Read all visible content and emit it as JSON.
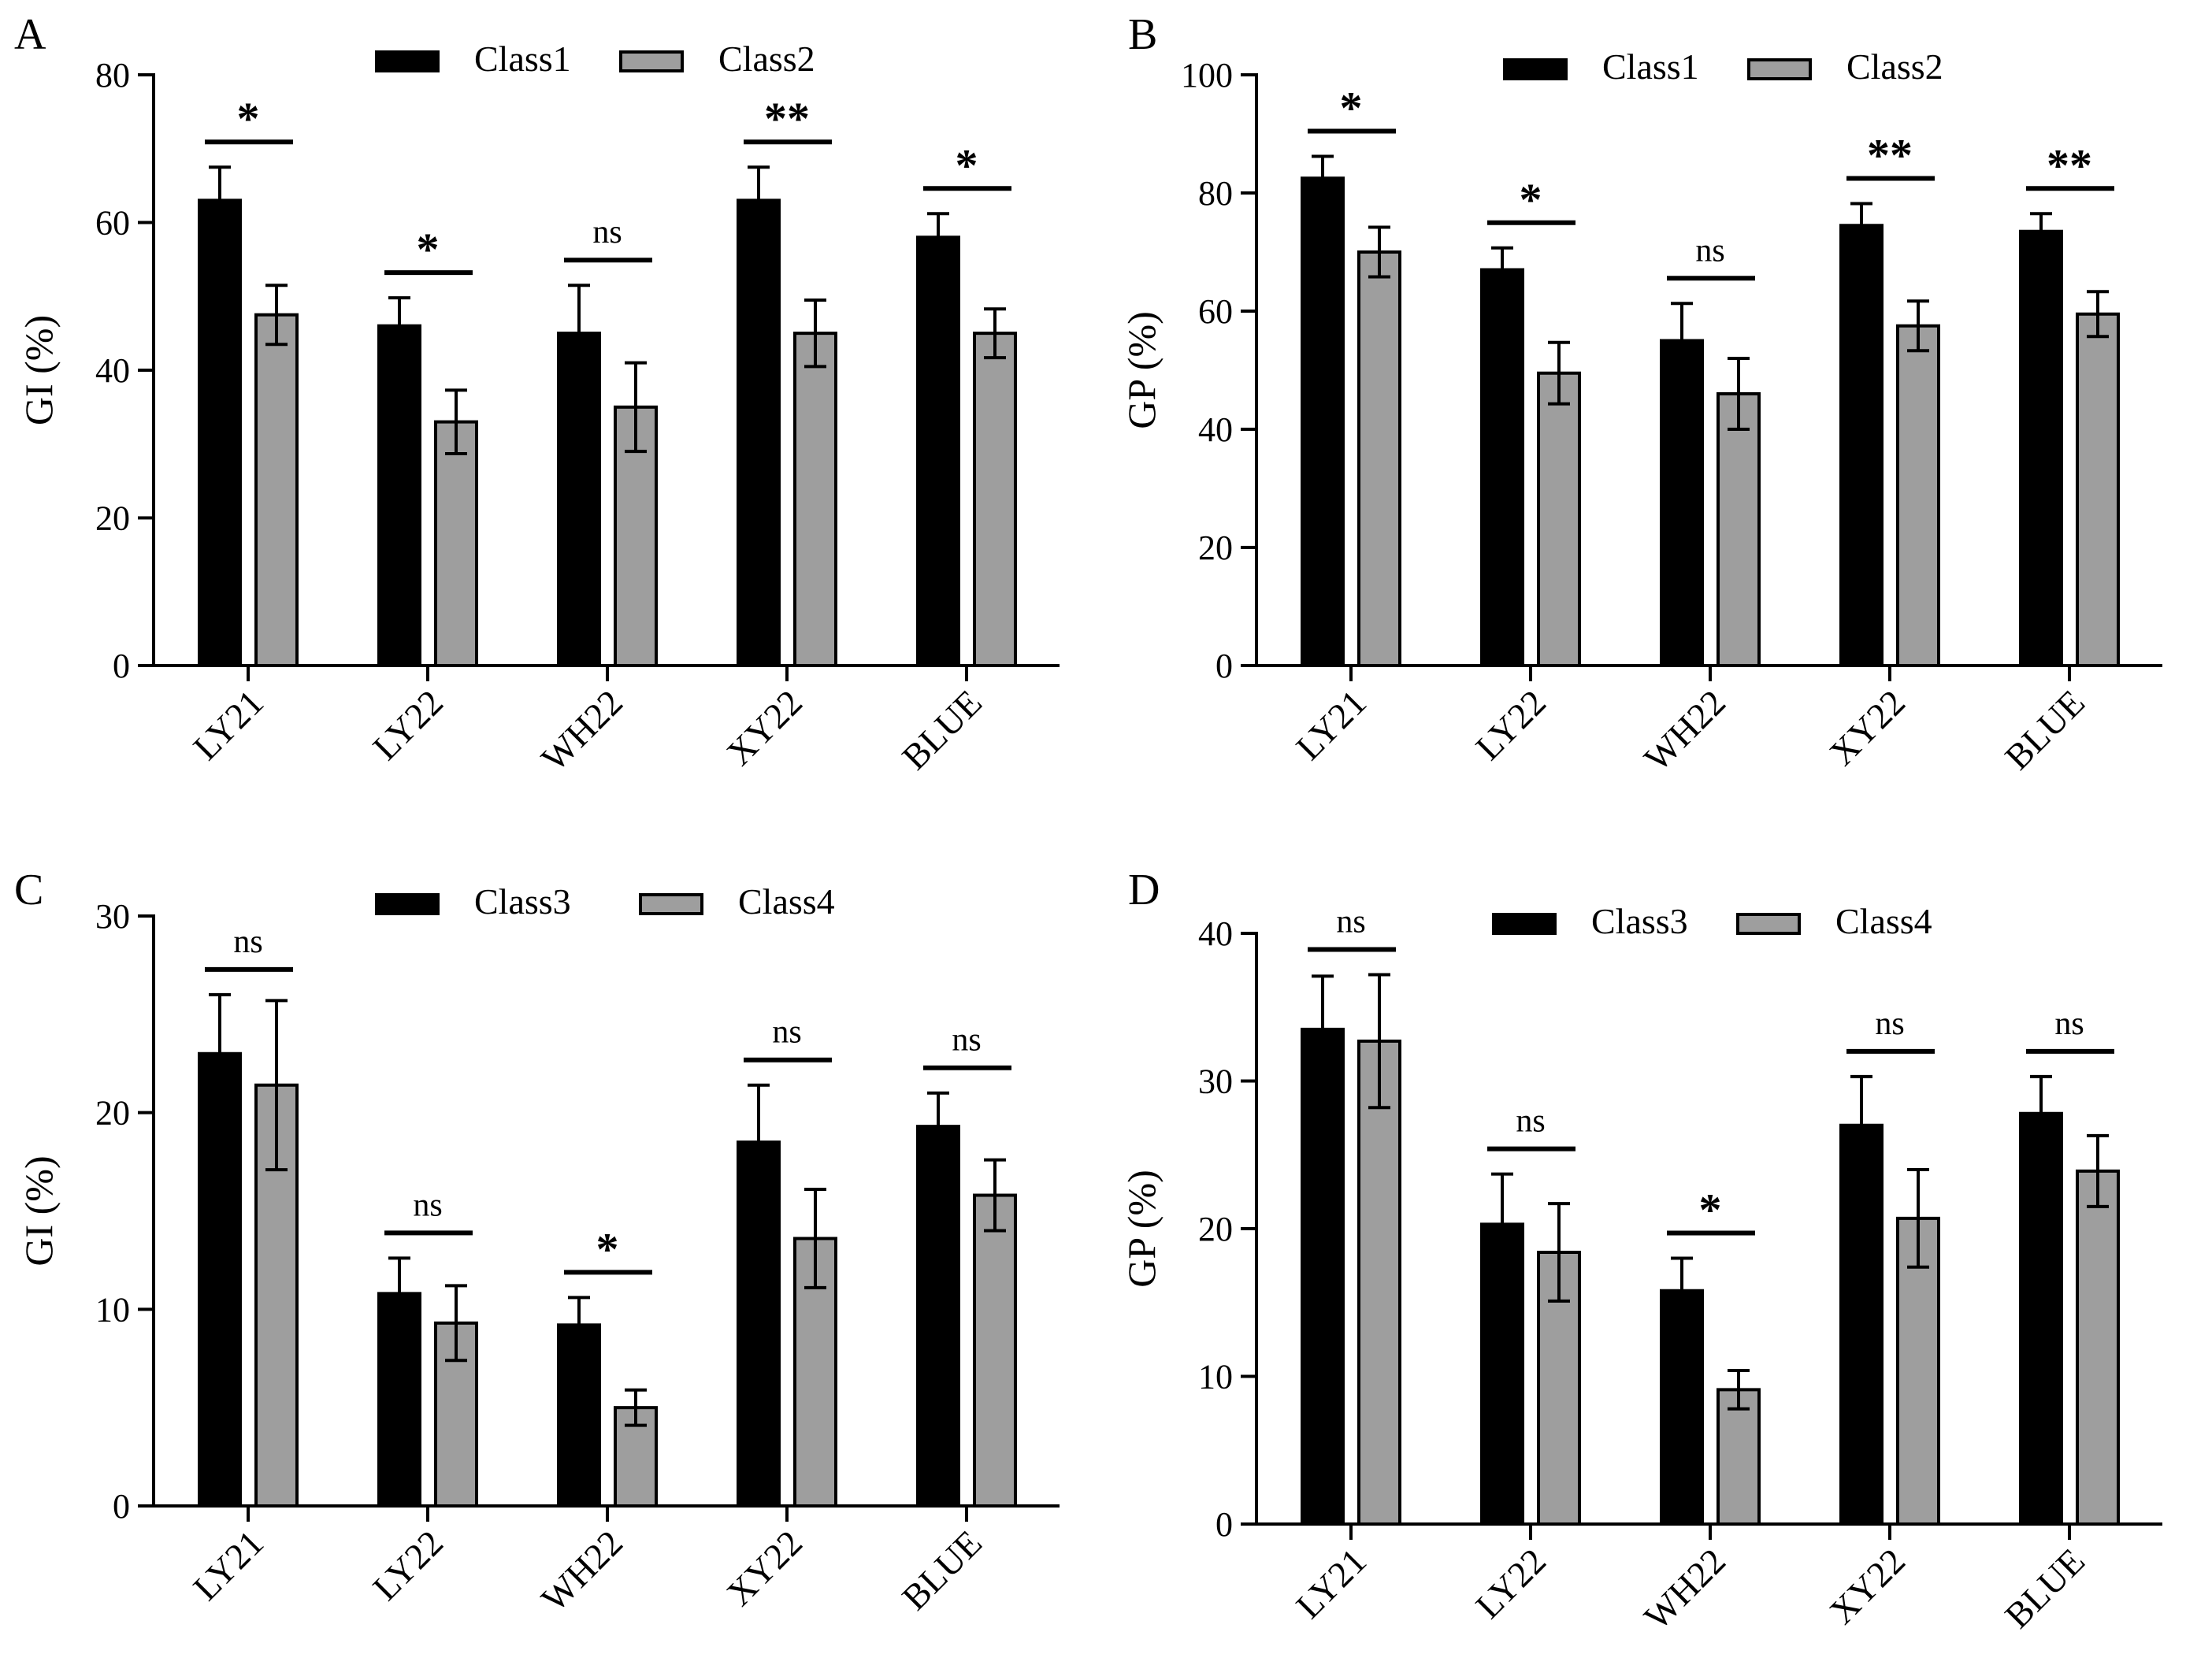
{
  "colors": {
    "series_a": "#000000",
    "series_b": "#9e9e9e",
    "axis": "#000000"
  },
  "chart_data": [
    {
      "panel_label": "A",
      "type": "bar",
      "title": "",
      "xlabel": "",
      "ylabel": "GI (%)",
      "ylim": [
        0,
        80
      ],
      "yticks": [
        0,
        20,
        40,
        60,
        80
      ],
      "categories": [
        "LY21",
        "LY22",
        "WH22",
        "XY22",
        "BLUE"
      ],
      "series": [
        {
          "name": "Class1",
          "values": [
            63,
            46,
            45,
            63,
            58
          ],
          "errors": [
            4.5,
            3.8,
            6.5,
            4.5,
            3.2
          ]
        },
        {
          "name": "Class2",
          "values": [
            47.5,
            33,
            35,
            45,
            45
          ],
          "errors": [
            4,
            4.3,
            6,
            4.5,
            3.3
          ]
        }
      ],
      "significance": [
        "*",
        "*",
        "ns",
        "**",
        "*"
      ],
      "legend": "top-center"
    },
    {
      "panel_label": "B",
      "type": "bar",
      "title": "",
      "xlabel": "",
      "ylabel": "GP (%)",
      "ylim": [
        0,
        100
      ],
      "yticks": [
        0,
        20,
        40,
        60,
        80,
        100
      ],
      "categories": [
        "LY21",
        "LY22",
        "WH22",
        "XY22",
        "BLUE"
      ],
      "series": [
        {
          "name": "Class1",
          "values": [
            82.5,
            67,
            55,
            74.5,
            73.5
          ],
          "errors": [
            3.7,
            3.7,
            6.3,
            3.7,
            3
          ]
        },
        {
          "name": "Class2",
          "values": [
            70,
            49.5,
            46,
            57.5,
            59.5
          ],
          "errors": [
            4.2,
            5.2,
            6,
            4.2,
            3.8
          ]
        }
      ],
      "significance": [
        "*",
        "*",
        "ns",
        "**",
        "**"
      ],
      "legend": "top-center"
    },
    {
      "panel_label": "C",
      "type": "bar",
      "title": "",
      "xlabel": "",
      "ylabel": "GI (%)",
      "ylim": [
        0,
        30
      ],
      "yticks": [
        0,
        10,
        20,
        30
      ],
      "categories": [
        "LY21",
        "LY22",
        "WH22",
        "XY22",
        "BLUE"
      ],
      "series": [
        {
          "name": "Class3",
          "values": [
            23,
            10.8,
            9.2,
            18.5,
            19.3
          ],
          "errors": [
            3,
            1.8,
            1.4,
            2.9,
            1.7
          ]
        },
        {
          "name": "Class4",
          "values": [
            21.4,
            9.3,
            5,
            13.6,
            15.8
          ],
          "errors": [
            4.3,
            1.9,
            0.9,
            2.5,
            1.8
          ]
        }
      ],
      "significance": [
        "ns",
        "ns",
        "*",
        "ns",
        "ns"
      ],
      "legend": "top-center"
    },
    {
      "panel_label": "D",
      "type": "bar",
      "title": "",
      "xlabel": "",
      "ylabel": "GP (%)",
      "ylim": [
        0,
        40
      ],
      "yticks": [
        0,
        10,
        20,
        30,
        40
      ],
      "categories": [
        "LY21",
        "LY22",
        "WH22",
        "XY22",
        "BLUE"
      ],
      "series": [
        {
          "name": "Class3",
          "values": [
            33.5,
            20.3,
            15.8,
            27,
            27.8
          ],
          "errors": [
            3.6,
            3.4,
            2.2,
            3.3,
            2.5
          ]
        },
        {
          "name": "Class4",
          "values": [
            32.7,
            18.4,
            9.1,
            20.7,
            23.9
          ],
          "errors": [
            4.5,
            3.3,
            1.3,
            3.3,
            2.4
          ]
        }
      ],
      "significance": [
        "ns",
        "ns",
        "*",
        "ns",
        "ns"
      ],
      "legend": "top-center"
    }
  ]
}
